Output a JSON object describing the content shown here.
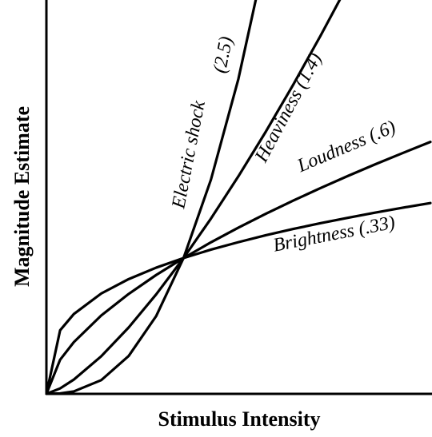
{
  "chart_data": {
    "type": "line",
    "xlabel": "Stimulus Intensity",
    "ylabel": "Magnitude Estimate",
    "x": [
      0,
      0.1,
      0.2,
      0.4,
      0.6,
      0.8,
      1,
      1.2,
      1.4,
      1.6,
      1.8,
      2,
      2.2,
      2.4,
      2.6,
      2.8
    ],
    "xlim": [
      0,
      2.8
    ],
    "ylim": [
      0,
      2.9
    ],
    "series": [
      {
        "name": "Electric shock",
        "exponent": "(2.5)",
        "color": "#000000",
        "values": [
          0,
          0.003,
          0.018,
          0.101,
          0.279,
          0.572,
          1,
          1.578,
          2.319,
          3.238,
          null,
          null,
          null,
          null,
          null,
          null
        ]
      },
      {
        "name": "Heaviness",
        "exponent": "(1.4)",
        "color": "#000000",
        "values": [
          0,
          0.04,
          0.105,
          0.277,
          0.489,
          0.732,
          1,
          1.291,
          1.602,
          1.931,
          2.277,
          2.639,
          3.016,
          null,
          null,
          null
        ]
      },
      {
        "name": "Loudness",
        "exponent": "(.6)",
        "color": "#000000",
        "values": [
          0,
          0.251,
          0.381,
          0.577,
          0.736,
          0.875,
          1,
          1.116,
          1.224,
          1.326,
          1.423,
          1.516,
          1.605,
          1.691,
          1.774,
          1.855
        ]
      },
      {
        "name": "Brightness",
        "exponent": "(.33)",
        "color": "#000000",
        "values": [
          0,
          0.468,
          0.588,
          0.739,
          0.845,
          0.929,
          1,
          1.062,
          1.117,
          1.168,
          1.214,
          1.257,
          1.297,
          1.335,
          1.371,
          1.405
        ]
      }
    ]
  }
}
